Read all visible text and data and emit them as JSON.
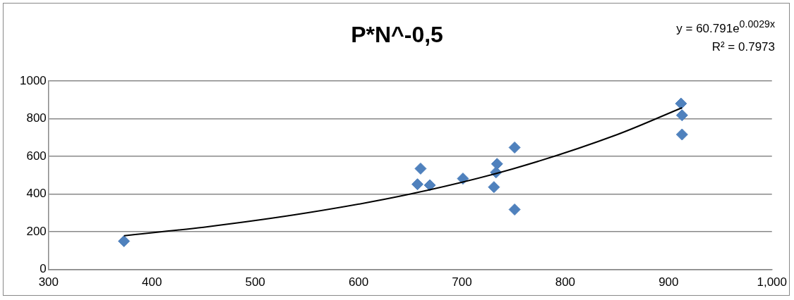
{
  "chart_data": {
    "type": "scatter",
    "title": "P*N^-0,5",
    "annotations": [
      "y = 60.791e$^{0.0029x}$",
      "R² = 0.7973"
    ],
    "xlim": [
      300,
      1000
    ],
    "xticks": [
      300,
      400,
      500,
      600,
      700,
      800,
      900,
      {
        "value": 1000,
        "label": "1,000"
      }
    ],
    "ylim": [
      0,
      1000
    ],
    "yticks": [
      0,
      200,
      400,
      600,
      800,
      1000
    ],
    "grid": "y",
    "legend": false,
    "series": [
      {
        "color": "#4f81bd",
        "marker": "diamond",
        "x": [
          373,
          657,
          660,
          669,
          701,
          731,
          733,
          734,
          751,
          751,
          912,
          913,
          913
        ],
        "values": [
          150,
          452,
          535,
          447,
          482,
          437,
          515,
          560,
          647,
          318,
          880,
          818,
          716
        ]
      },
      {
        "type": "line",
        "color": "#000000",
        "marker": "none",
        "x": [
          373,
          450,
          550,
          650,
          750,
          850,
          913
        ],
        "values": [
          179,
          224,
          300,
          400,
          535,
          715,
          858
        ]
      }
    ]
  }
}
